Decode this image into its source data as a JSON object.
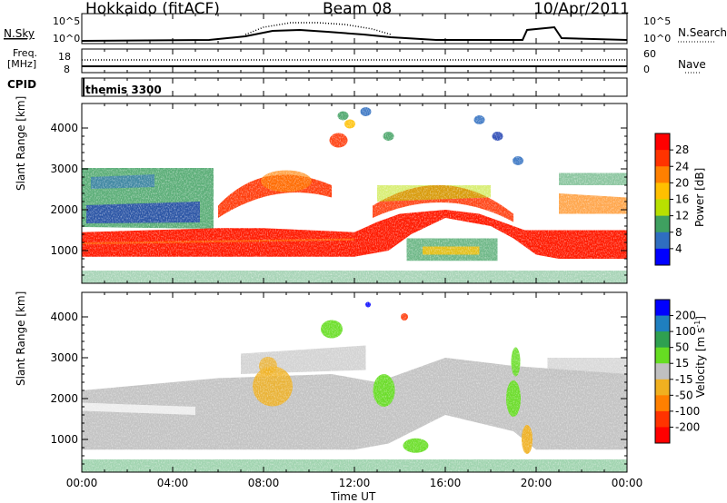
{
  "header": {
    "station": "Hokkaido (fitACF)",
    "beam": "Beam 08",
    "date": "10/Apr/2011"
  },
  "strips": {
    "nsky_label": "N.Sky",
    "nsearch_label": "N.Search",
    "nsky_ticks": [
      "10^5",
      "10^0"
    ],
    "nsky_right_ticks": [
      "10^5",
      "10^0"
    ],
    "freq_label_line1": "Freq.",
    "freq_label_line2": "[MHz]",
    "freq_ticks": [
      "18",
      "8"
    ],
    "nave_label": "Nave",
    "nave_ticks": [
      "60",
      "0"
    ],
    "cpid_label": "CPID",
    "cpid_value": "themis 3300"
  },
  "axes": {
    "ylabel": "Slant Range [km]",
    "xlabel": "Time UT",
    "y_ticks": [
      "4000",
      "3000",
      "2000",
      "1000"
    ],
    "x_ticks": [
      "00:00",
      "04:00",
      "08:00",
      "12:00",
      "16:00",
      "20:00",
      "00:00"
    ]
  },
  "power_bar": {
    "label": "Power [dB]",
    "ticks": [
      "28",
      "24",
      "20",
      "16",
      "12",
      "8",
      "4"
    ],
    "colors": [
      "#ff0000",
      "#ff3300",
      "#ff8000",
      "#ffc000",
      "#b8e000",
      "#3fa060",
      "#2f6ec0",
      "#0000ff"
    ]
  },
  "velocity_bar": {
    "label": "Velocity [m s-1]",
    "label_main": "Velocity [m s",
    "label_exp": "-1",
    "label_tail": "]",
    "ticks": [
      "200",
      "100",
      "50",
      "15",
      "-15",
      "-50",
      "-100",
      "-200"
    ],
    "colors": [
      "#0000ff",
      "#1f7fbf",
      "#2fa050",
      "#66dd22",
      "#c0c0c0",
      "#f0b020",
      "#ff8000",
      "#ff3300",
      "#ff0000"
    ]
  },
  "chart_data": [
    {
      "type": "heatmap",
      "title": "Power",
      "xlabel": "Time UT",
      "ylabel": "Slant Range [km]",
      "xlim": [
        0,
        24
      ],
      "ylim": [
        200,
        4600
      ],
      "colorbar": {
        "label": "Power [dB]",
        "range": [
          0,
          32
        ],
        "ticks": [
          4,
          8,
          12,
          16,
          20,
          24,
          28
        ]
      },
      "features": [
        {
          "t_start": 0,
          "t_end": 24,
          "range_km_center": 1200,
          "power_db": 28
        },
        {
          "t_start": 6,
          "t_end": 11,
          "range_km_center": 2300,
          "power_db": 26
        },
        {
          "t_start": 13,
          "t_end": 19,
          "range_km_center": 2200,
          "power_db": 24
        },
        {
          "t_start": 14.5,
          "t_end": 18.5,
          "range_km_center": 1000,
          "power_db": 16
        }
      ]
    },
    {
      "type": "heatmap",
      "title": "Velocity",
      "xlabel": "Time UT",
      "ylabel": "Slant Range [km]",
      "xlim": [
        0,
        24
      ],
      "ylim": [
        200,
        4600
      ],
      "colorbar": {
        "label": "Velocity [m s-1]",
        "range": [
          -250,
          250
        ],
        "ticks": [
          200,
          100,
          50,
          15,
          -15,
          -50,
          -100,
          -200
        ]
      },
      "features": [
        {
          "t_start": 0,
          "t_end": 24,
          "range_km_center": 1500,
          "velocity_ms": 0
        },
        {
          "t_start": 7.5,
          "t_end": 9,
          "range_km_center": 2300,
          "velocity_ms": -30
        },
        {
          "t_start": 12.5,
          "t_end": 13.5,
          "range_km_center": 2200,
          "velocity_ms": 40
        },
        {
          "t_start": 18.5,
          "t_end": 19.5,
          "range_km_center": 2000,
          "velocity_ms": 40
        },
        {
          "t_start": 19.5,
          "t_end": 20,
          "range_km_center": 1000,
          "velocity_ms": -40
        }
      ]
    }
  ]
}
